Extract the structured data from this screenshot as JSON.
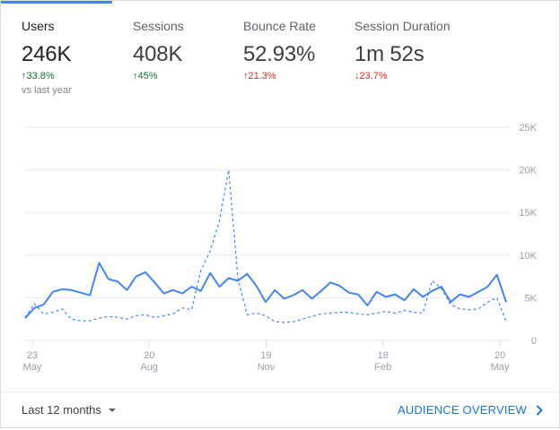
{
  "metrics": [
    {
      "label": "Users",
      "value": "246K",
      "arrow": "↑",
      "change": "33.8%",
      "compare": "vs last year"
    },
    {
      "label": "Sessions",
      "value": "408K",
      "arrow": "↑",
      "change": "45%"
    },
    {
      "label": "Bounce Rate",
      "value": "52.93%",
      "arrow": "↑",
      "change": "21.3%"
    },
    {
      "label": "Session Duration",
      "value": "1m 52s",
      "arrow": "↓",
      "change": "23.7%"
    }
  ],
  "colors": {
    "accent": "#4285f4",
    "positive": "#137333",
    "negative": "#d93025"
  },
  "chart_data": {
    "type": "line",
    "y_ticks": [
      "25K",
      "20K",
      "15K",
      "10K",
      "5K",
      "0"
    ],
    "ylim": [
      0,
      25000
    ],
    "x_ticks": [
      {
        "day": "23",
        "month": "May"
      },
      {
        "day": "20",
        "month": "Aug"
      },
      {
        "day": "19",
        "month": "Nov"
      },
      {
        "day": "18",
        "month": "Feb"
      },
      {
        "day": "20",
        "month": "May"
      }
    ],
    "grid": true,
    "series": [
      {
        "style": "solid",
        "color": "#4285f4",
        "values": [
          2600,
          3800,
          4200,
          5700,
          6000,
          5900,
          5600,
          5300,
          9100,
          7200,
          6900,
          5900,
          7500,
          8000,
          6800,
          5500,
          5900,
          5500,
          6300,
          5800,
          7900,
          6300,
          7300,
          7000,
          7800,
          6400,
          4500,
          5900,
          4900,
          5300,
          5900,
          4900,
          5800,
          6800,
          6400,
          5600,
          5400,
          4100,
          5700,
          5100,
          5400,
          4700,
          6000,
          5100,
          5800,
          6300,
          4500,
          5400,
          5100,
          5700,
          6300,
          7700,
          4500
        ]
      },
      {
        "style": "dashed",
        "color": "#4285f4",
        "values": [
          2700,
          4300,
          3100,
          3300,
          3700,
          2500,
          2300,
          2300,
          2600,
          2800,
          2700,
          2500,
          2900,
          3000,
          2700,
          2900,
          3100,
          3800,
          3600,
          8200,
          10500,
          14000,
          20000,
          7300,
          3000,
          3200,
          2900,
          2200,
          2100,
          2200,
          2500,
          2800,
          3100,
          3200,
          3300,
          3300,
          3100,
          3000,
          3200,
          3400,
          3200,
          3500,
          3300,
          3200,
          7000,
          6100,
          4200,
          3700,
          3600,
          3700,
          4500,
          5000,
          2200
        ]
      }
    ]
  },
  "footer": {
    "range_label": "Last 12 months",
    "link_label": "AUDIENCE OVERVIEW"
  }
}
